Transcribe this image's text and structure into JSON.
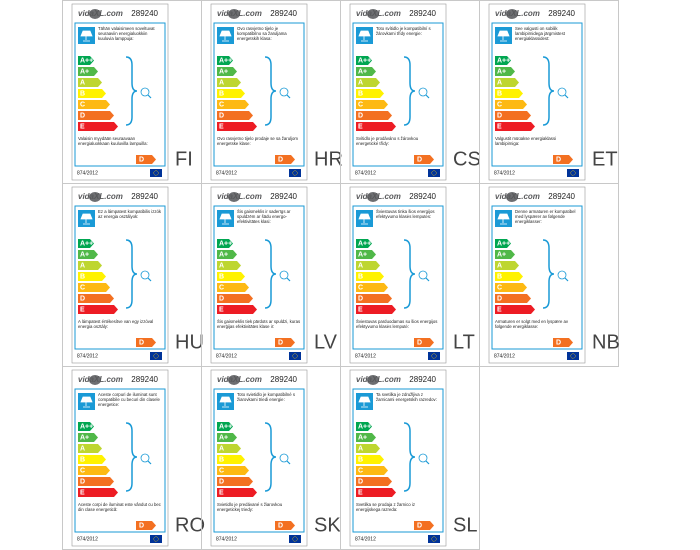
{
  "brand": "vidaXL.com",
  "product_number": "289240",
  "classes": [
    "A++",
    "A+",
    "A",
    "B",
    "C",
    "D",
    "E"
  ],
  "rating": "D",
  "regulation": "874/2012",
  "labels": [
    {
      "code": "FI",
      "top_text": "Tähän valaisimeen soveltuvat seuraaviin energialuokkiin kuuluvia lamppuja:",
      "bottom_text": "Valaisin myydään seuraavaan energialuokkaan kuuluvilla lampuilla:"
    },
    {
      "code": "HR",
      "top_text": "Ovo rasvjetno tijelo je kompatibilno sa žaruljama energetskih klasa:",
      "bottom_text": "Ovo rasvjetno tijelo prodaje se sa žaruljom energetske klase:"
    },
    {
      "code": "CS",
      "top_text": "Toto svítidlo je kompatibilní s žárovkami třídy energie:",
      "bottom_text": "Svítidlo je prodáváno s žárovkou energetické třídy:"
    },
    {
      "code": "ET",
      "top_text": "See valgusti on sobilik lambipirnidega järgmistest energiaklassidest:",
      "bottom_text": "Valgustit müüakse energiaklassi lambipirniga:"
    },
    {
      "code": "HU",
      "top_text": "Ez a lámpatest kompatibilis izzók az energia osztályok:",
      "bottom_text": "A lámpatest értékesítve van egy izzóval energia osztály:"
    },
    {
      "code": "LV",
      "top_text": "Šis gaismeklis ir saderīgs ar spuldzēm ar šādu energo-efektivitātes klasi:",
      "bottom_text": "Šis gaismeklis tiek pārdots ar spuldzi, kuras enerģijas efektivitātes klase ir:"
    },
    {
      "code": "LT",
      "top_text": "Šviestuvas tinka šios energijos efektyvumo klasės lemputės:",
      "bottom_text": "Šviestuvas parduodamas su šios energijos efektyvumo klasės lemputė:"
    },
    {
      "code": "NB",
      "top_text": "Denne armaturen er kompatibel med lyspærer av følgende energiklasser:",
      "bottom_text": "Armaturen er solgt med en lyspære av følgende energiklasse:"
    },
    {
      "code": "RO",
      "top_text": "Aceste corpuri de iluminat sunt compatibile cu becuri din clasele energetice:",
      "bottom_text": "Aceste corpi de iluminat este vândut cu bec din clase energetică:"
    },
    {
      "code": "SK",
      "top_text": "Toto svietidlo je kompatibilné s žiarovkami triedi energie:",
      "bottom_text": "Svietidlo je predávané s žiarovkou energetickej triedy:"
    },
    {
      "code": "SL",
      "top_text": "Ta svetilka je združljiva z žarnicami energetskih razredov:",
      "bottom_text": "Svetilka se prodaja z žarnico iz energijskega razreda:"
    }
  ]
}
